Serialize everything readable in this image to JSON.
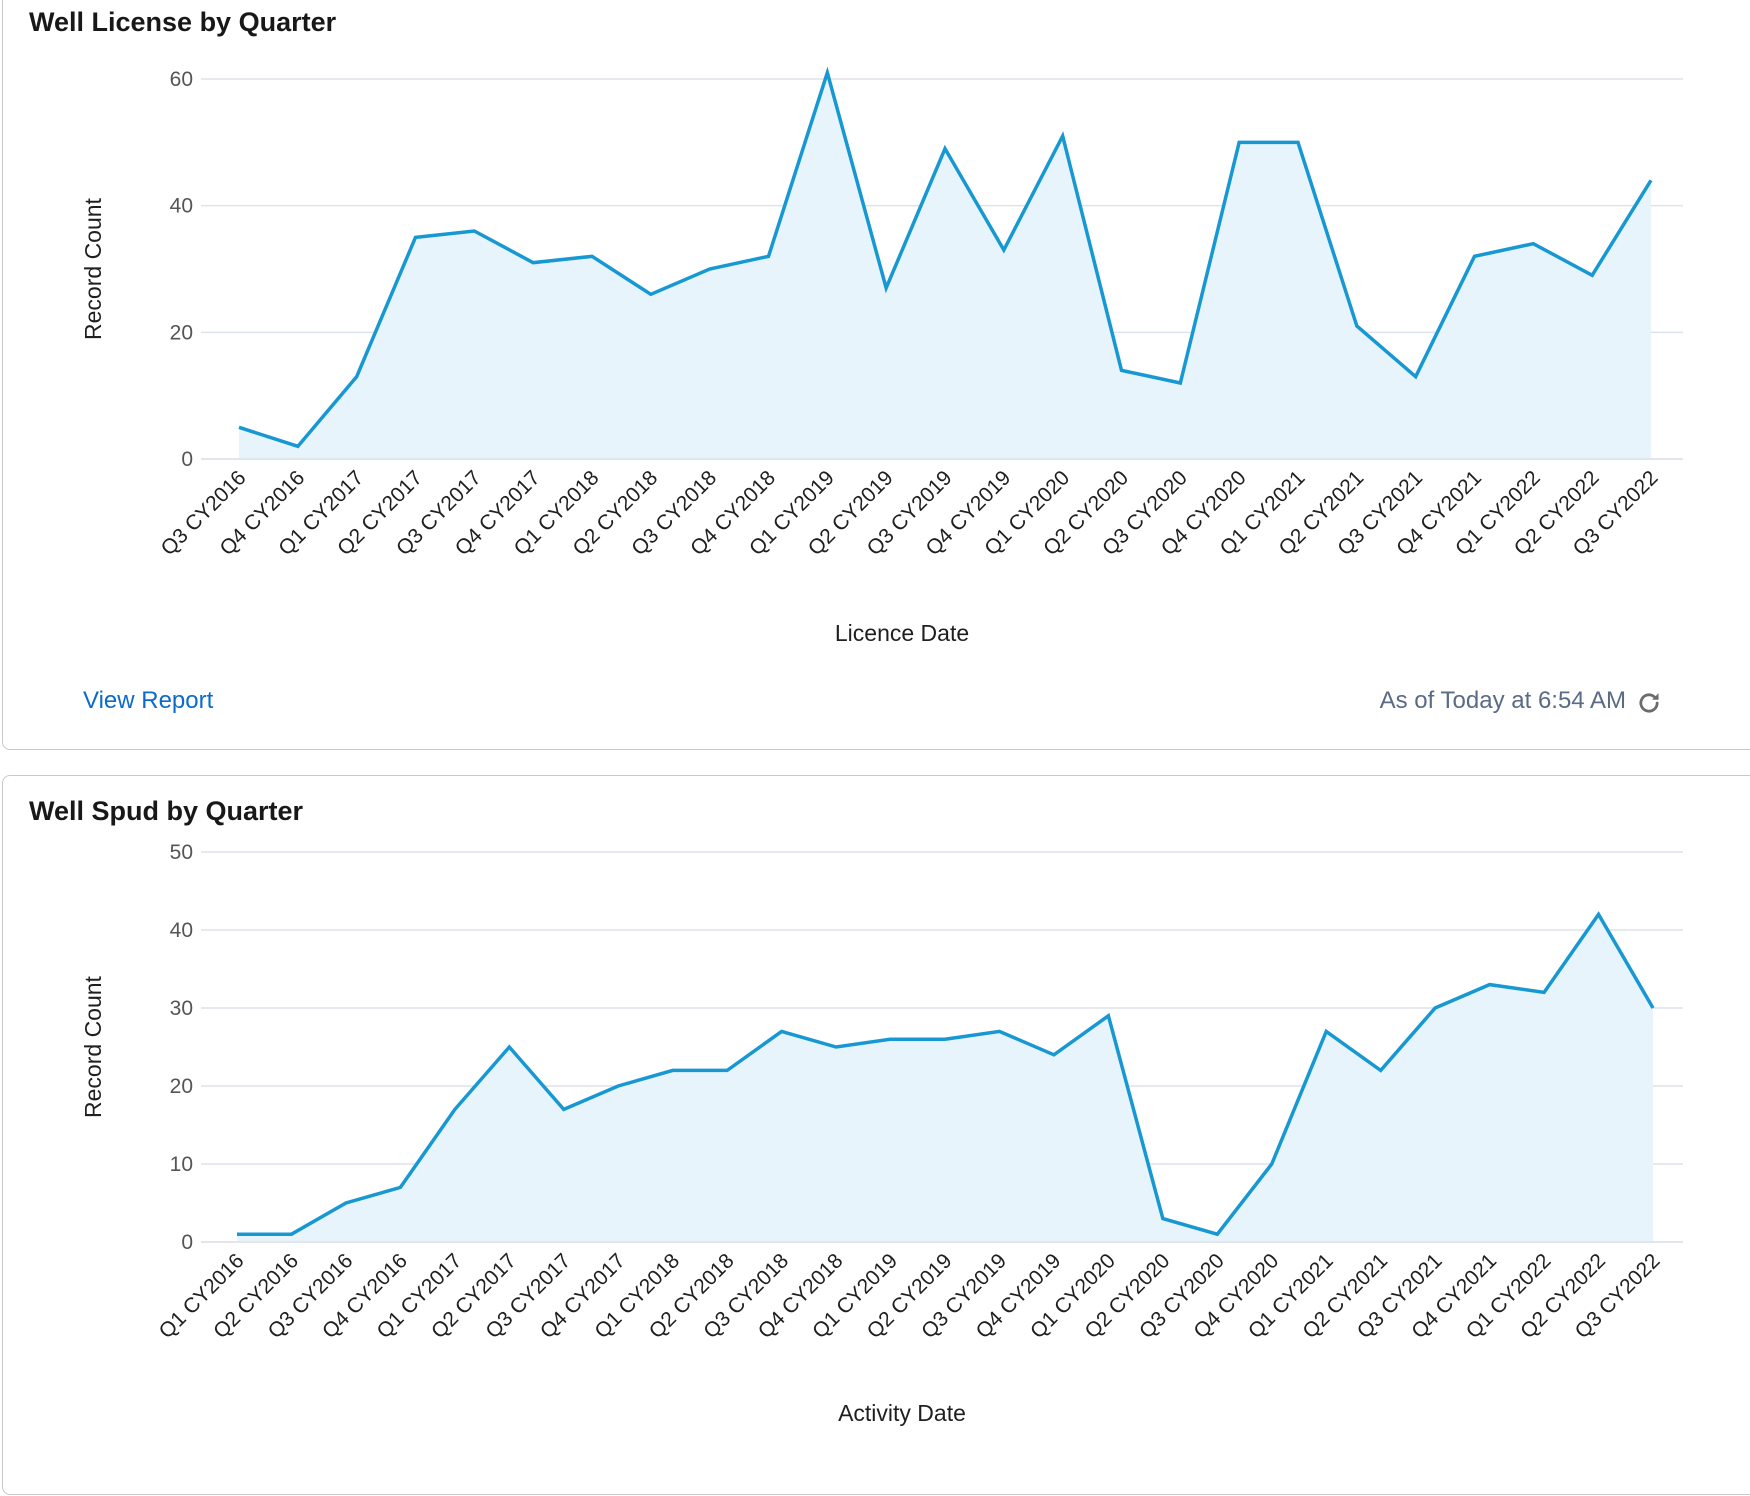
{
  "charts": [
    {
      "title": "Well License by Quarter",
      "footer": {
        "view_report_label": "View Report",
        "timestamp": "As of Today at 6:54 AM"
      }
    },
    {
      "title": "Well Spud by Quarter"
    }
  ],
  "colors": {
    "line": "#1798d3",
    "area": "#e8f4fb",
    "grid": "#dde3ea",
    "link": "#0b6bcb",
    "timestamp": "#5a6b86"
  },
  "icons": {
    "refresh": "refresh-icon"
  },
  "chart_data": [
    {
      "type": "area",
      "title": "Well License by Quarter",
      "xlabel": "Licence Date",
      "ylabel": "Record Count",
      "ylim": [
        0,
        60
      ],
      "yticks": [
        0,
        20,
        40,
        60
      ],
      "grid": true,
      "categories": [
        "Q3 CY2016",
        "Q4 CY2016",
        "Q1 CY2017",
        "Q2 CY2017",
        "Q3 CY2017",
        "Q4 CY2017",
        "Q1 CY2018",
        "Q2 CY2018",
        "Q3 CY2018",
        "Q4 CY2018",
        "Q1 CY2019",
        "Q2 CY2019",
        "Q3 CY2019",
        "Q4 CY2019",
        "Q1 CY2020",
        "Q2 CY2020",
        "Q3 CY2020",
        "Q4 CY2020",
        "Q1 CY2021",
        "Q2 CY2021",
        "Q3 CY2021",
        "Q4 CY2021",
        "Q1 CY2022",
        "Q2 CY2022",
        "Q3 CY2022"
      ],
      "values": [
        5,
        2,
        13,
        35,
        36,
        31,
        32,
        26,
        30,
        32,
        61,
        27,
        49,
        33,
        51,
        14,
        12,
        50,
        50,
        21,
        13,
        32,
        34,
        29,
        44
      ]
    },
    {
      "type": "area",
      "title": "Well Spud by Quarter",
      "xlabel": "Activity Date",
      "ylabel": "Record Count",
      "ylim": [
        0,
        50
      ],
      "yticks": [
        0,
        10,
        20,
        30,
        40,
        50
      ],
      "grid": true,
      "categories": [
        "Q1 CY2016",
        "Q2 CY2016",
        "Q3 CY2016",
        "Q4 CY2016",
        "Q1 CY2017",
        "Q2 CY2017",
        "Q3 CY2017",
        "Q4 CY2017",
        "Q1 CY2018",
        "Q2 CY2018",
        "Q3 CY2018",
        "Q4 CY2018",
        "Q1 CY2019",
        "Q2 CY2019",
        "Q3 CY2019",
        "Q4 CY2019",
        "Q1 CY2020",
        "Q2 CY2020",
        "Q3 CY2020",
        "Q4 CY2020",
        "Q1 CY2021",
        "Q2 CY2021",
        "Q3 CY2021",
        "Q4 CY2021",
        "Q1 CY2022",
        "Q2 CY2022",
        "Q3 CY2022"
      ],
      "values": [
        1,
        1,
        5,
        7,
        17,
        25,
        17,
        20,
        22,
        22,
        27,
        25,
        26,
        26,
        27,
        24,
        29,
        3,
        1,
        10,
        27,
        22,
        30,
        33,
        32,
        42,
        30
      ]
    }
  ]
}
